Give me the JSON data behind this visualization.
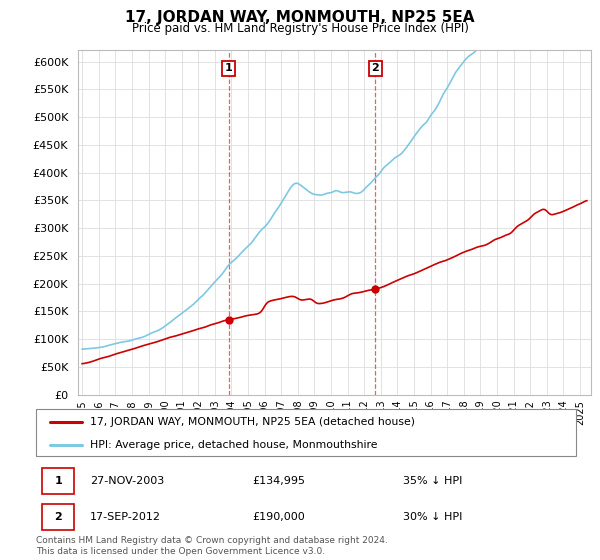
{
  "title": "17, JORDAN WAY, MONMOUTH, NP25 5EA",
  "subtitle": "Price paid vs. HM Land Registry's House Price Index (HPI)",
  "ylim": [
    0,
    620000
  ],
  "yticks": [
    0,
    50000,
    100000,
    150000,
    200000,
    250000,
    300000,
    350000,
    400000,
    450000,
    500000,
    550000,
    600000
  ],
  "hpi_color": "#7ec8e3",
  "price_color": "#cc0000",
  "marker1_date_str": "27-NOV-2003",
  "marker1_price": 134995,
  "marker1_pct": "35% ↓ HPI",
  "marker2_date_str": "17-SEP-2012",
  "marker2_price": 190000,
  "marker2_pct": "30% ↓ HPI",
  "legend_line1": "17, JORDAN WAY, MONMOUTH, NP25 5EA (detached house)",
  "legend_line2": "HPI: Average price, detached house, Monmouthshire",
  "footnote": "Contains HM Land Registry data © Crown copyright and database right 2024.\nThis data is licensed under the Open Government Licence v3.0.",
  "xstart_year": 1995,
  "xend_year": 2025
}
